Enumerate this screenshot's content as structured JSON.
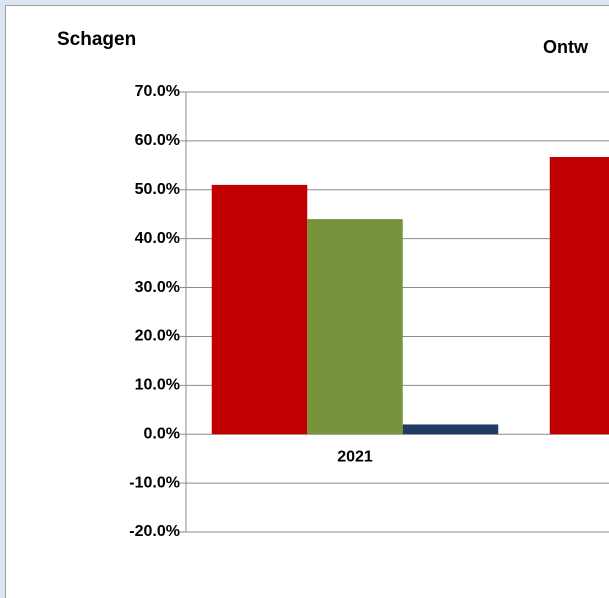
{
  "chart_data": {
    "type": "bar",
    "title": "Schagen",
    "subtitle": "Ontw",
    "categories": [
      "2021",
      null
    ],
    "series": [
      {
        "color": "#c00000",
        "values": [
          51.0,
          56.7
        ]
      },
      {
        "color": "#77933c",
        "values": [
          44.0,
          null
        ]
      },
      {
        "color": "#1f3b63",
        "values": [
          2.0,
          null
        ]
      }
    ],
    "ylim": [
      -20,
      70
    ],
    "yticks": [
      {
        "value": -20,
        "label": "-20.0%"
      },
      {
        "value": -10,
        "label": "-10.0%"
      },
      {
        "value": 0,
        "label": "0.0%"
      },
      {
        "value": 10,
        "label": "10.0%"
      },
      {
        "value": 20,
        "label": "20.0%"
      },
      {
        "value": 30,
        "label": "30.0%"
      },
      {
        "value": 40,
        "label": "40.0%"
      },
      {
        "value": 50,
        "label": "50.0%"
      },
      {
        "value": 60,
        "label": "60.0%"
      },
      {
        "value": 70,
        "label": "70.0%"
      }
    ],
    "grid": true
  }
}
